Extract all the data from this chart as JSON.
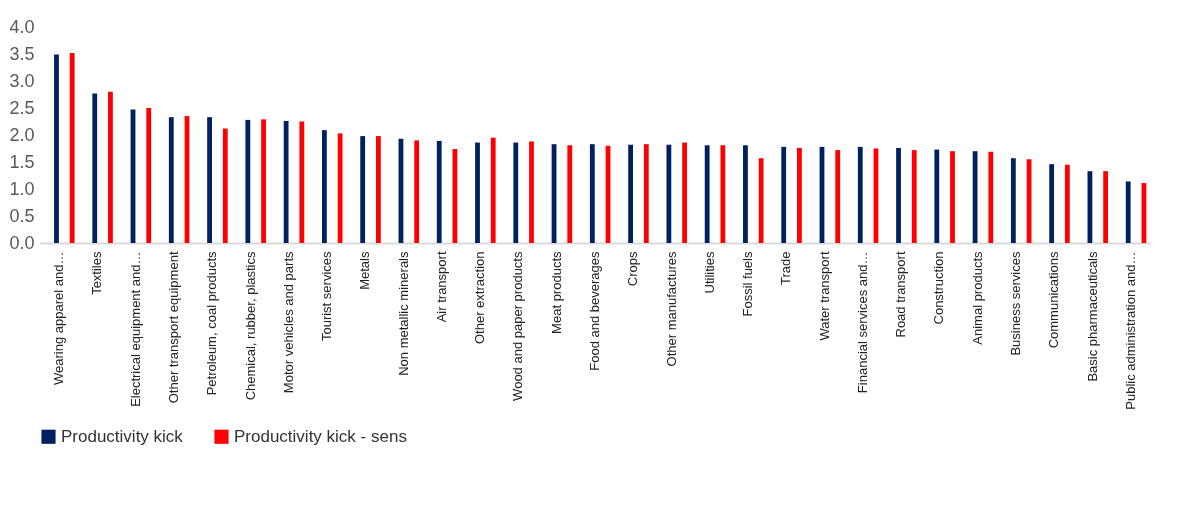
{
  "chart_data": {
    "type": "bar",
    "categories": [
      "Wearing apparel and…",
      "Textiles",
      "Electrical equipment and…",
      "Other transport equipment",
      "Petroleum, coal products",
      "Chemical, rubber, plastics",
      "Motor vehicles and parts",
      "Tourist services",
      "Metals",
      "Non metallic minerals",
      "Air transport",
      "Other extraction",
      "Wood and paper products",
      "Meat products",
      "Food and beverages",
      "Crops",
      "Other manufactures",
      "Utilities",
      "Fossil fuels",
      "Trade",
      "Water transport",
      "Financial services and…",
      "Road transport",
      "Construction",
      "Animal products",
      "Business services",
      "Communications",
      "Basic pharmaceuticals",
      "Public administration and…"
    ],
    "series": [
      {
        "name": "Productivity kick",
        "color": "#002060",
        "values": [
          3.49,
          2.77,
          2.47,
          2.33,
          2.33,
          2.28,
          2.26,
          2.09,
          1.98,
          1.93,
          1.89,
          1.86,
          1.86,
          1.83,
          1.83,
          1.82,
          1.82,
          1.81,
          1.81,
          1.78,
          1.78,
          1.78,
          1.76,
          1.73,
          1.7,
          1.57,
          1.46,
          1.33,
          1.14
        ]
      },
      {
        "name": "Productivity kick - sens",
        "color": "#ff0000",
        "values": [
          3.52,
          2.8,
          2.5,
          2.35,
          2.12,
          2.29,
          2.25,
          2.03,
          1.98,
          1.9,
          1.74,
          1.95,
          1.88,
          1.81,
          1.8,
          1.83,
          1.86,
          1.81,
          1.57,
          1.76,
          1.72,
          1.75,
          1.72,
          1.7,
          1.69,
          1.55,
          1.45,
          1.33,
          1.11
        ]
      }
    ],
    "ylim": [
      0,
      4
    ],
    "yticks": [
      {
        "value": 0,
        "label": "0.0"
      },
      {
        "value": 0.5,
        "label": "0.5"
      },
      {
        "value": 1,
        "label": "1.0"
      },
      {
        "value": 1.5,
        "label": "1.5"
      },
      {
        "value": 2,
        "label": "2.0"
      },
      {
        "value": 2.5,
        "label": "2.5"
      },
      {
        "value": 3,
        "label": "3.0"
      },
      {
        "value": 3.5,
        "label": "3.5"
      },
      {
        "value": 4,
        "label": "4.0"
      }
    ],
    "grid": false,
    "legend": "bottom"
  }
}
